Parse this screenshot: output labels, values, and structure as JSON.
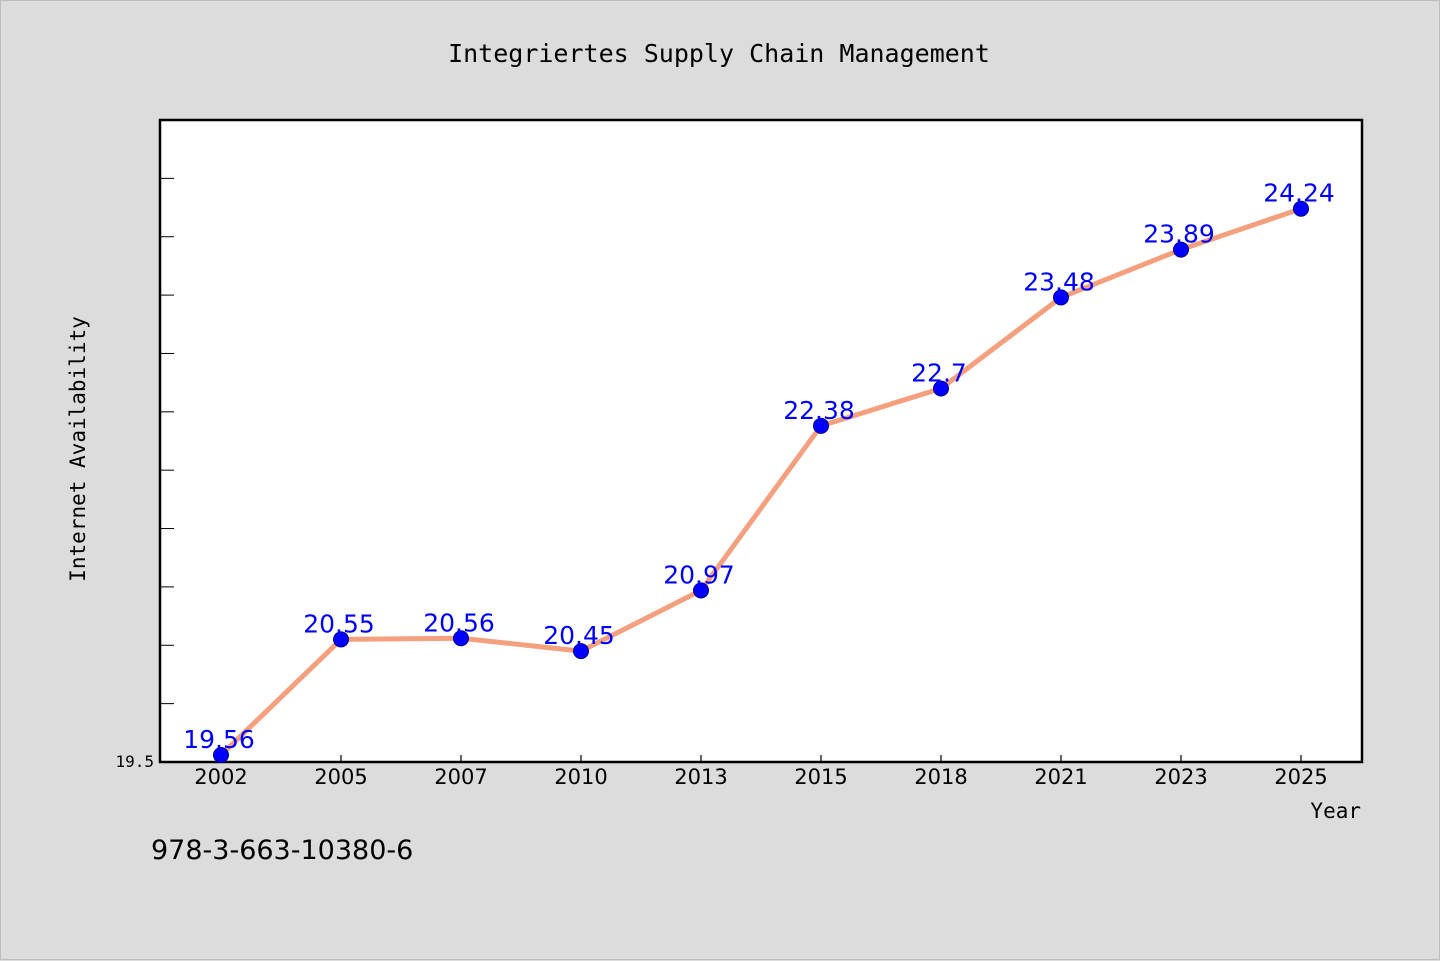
{
  "chart_data": {
    "type": "line",
    "title": "Integriertes Supply Chain Management",
    "xlabel": "Year",
    "ylabel": "Internet Availability",
    "categories": [
      "2002",
      "2005",
      "2007",
      "2010",
      "2013",
      "2015",
      "2018",
      "2021",
      "2023",
      "2025"
    ],
    "series": [
      {
        "values": [
          19.56,
          20.55,
          20.56,
          20.45,
          20.97,
          22.38,
          22.7,
          23.48,
          23.89,
          24.24
        ],
        "labels": [
          "19.56",
          "20.55",
          "20.56",
          "20.45",
          "20.97",
          "22.38",
          "22.7",
          "23.48",
          "23.89",
          "24.24"
        ],
        "line_color": "#f4a07e",
        "marker_color": "#0000ff",
        "label_color": "#0000ff"
      }
    ],
    "ylim": [
      19.5,
      25.0
    ],
    "ytick_label": "19.5",
    "grid": false,
    "legend": "none"
  },
  "footer": {
    "isbn": "978-3-663-10380-6"
  }
}
